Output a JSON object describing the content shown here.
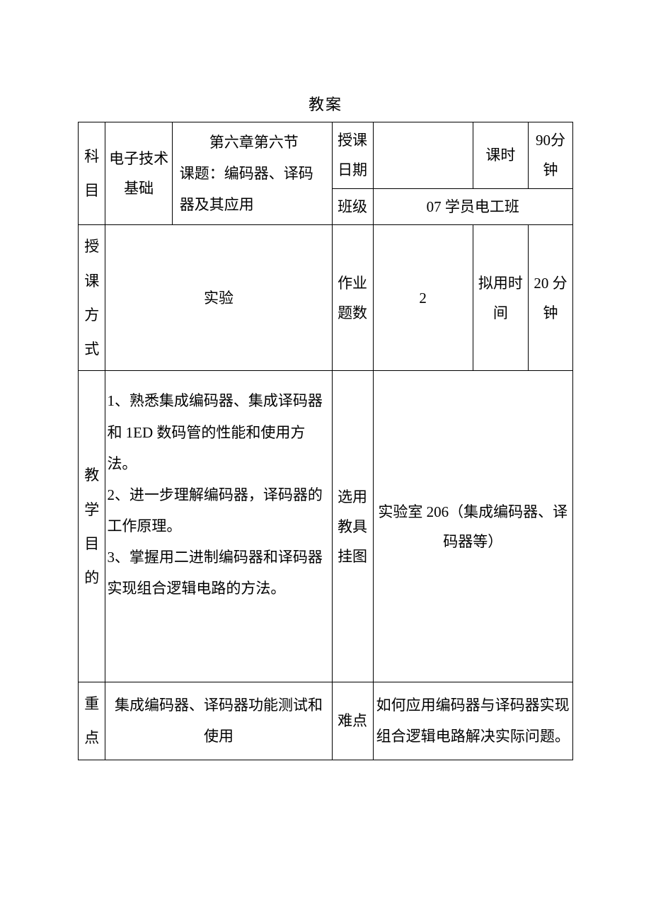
{
  "title": "教案",
  "row1": {
    "subject_label": "科目",
    "subject_value": "电子技术基础",
    "topic_line1": "　　第六章第六节",
    "topic_line2": "课题：编码器、译码器及其应用",
    "date_label": "授课日期",
    "date_value": "",
    "period_label": "课时",
    "period_value": "90分钟"
  },
  "row2": {
    "class_label": "班级",
    "class_value": "07 学员电工班"
  },
  "row3": {
    "method_label": "授课方式",
    "method_value": "实验",
    "hw_label": "作业题数",
    "hw_value": "2",
    "time_label": "拟用时间",
    "time_value": "20 分钟"
  },
  "row4": {
    "obj_label": "教学目的",
    "obj_text": "1、熟悉集成编码器、集成译码器和 1ED 数码管的性能和使用方法。\n2、进一步理解编码器，译码器的工作原理。\n3、掌握用二进制编码器和译码器实现组合逻辑电路的方法。",
    "tool_label": "选用教具挂图",
    "tool_value": "实验室 206（集成编码器、译码器等）"
  },
  "row5": {
    "key_label": "重点",
    "key_value": "集成编码器、译码器功能测试和使用",
    "diff_label": "难点",
    "diff_value": "如何应用编码器与译码器实现组合逻辑电路解决实际问题。"
  }
}
